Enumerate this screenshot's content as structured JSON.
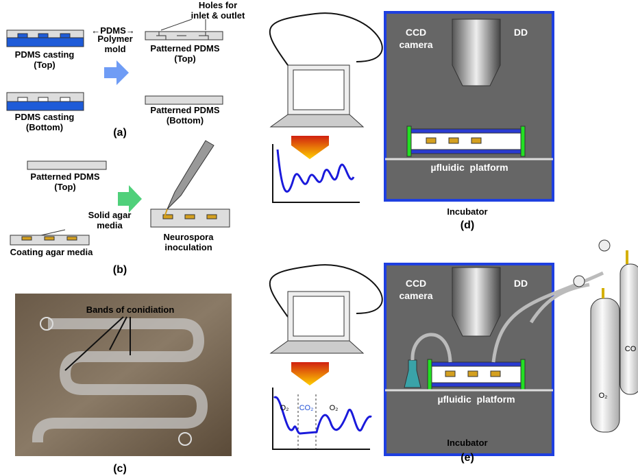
{
  "panel_a": {
    "label": "(a)",
    "pdms": "←PDMS→",
    "polymer_mold": [
      "Polymer",
      "mold"
    ],
    "casting_top": [
      "PDMS casting",
      "(Top)"
    ],
    "casting_bottom": [
      "PDMS casting",
      "(Bottom)"
    ],
    "holes": [
      "Holes for",
      "inlet & outlet"
    ],
    "patterned_top": [
      "Patterned PDMS",
      "(Top)"
    ],
    "patterned_bottom": [
      "Patterned PDMS",
      "(Bottom)"
    ]
  },
  "panel_b": {
    "label": "(b)",
    "patterned_top": [
      "Patterned PDMS",
      "(Top)"
    ],
    "solid_agar": [
      "Solid agar",
      "media"
    ],
    "coating": "Coating agar media",
    "inoculation": [
      "Neurospora",
      "inoculation"
    ]
  },
  "panel_c": {
    "label": "(c)",
    "bands": "Bands of conidiation"
  },
  "panel_d": {
    "label": "(d)",
    "camera": [
      "CCD",
      "camera"
    ],
    "dd": "DD",
    "platform": "µfluidic  platform",
    "incubator": "Incubator"
  },
  "panel_e": {
    "label": "(e)",
    "camera": [
      "CCD",
      "camera"
    ],
    "dd": "DD",
    "platform": "µfluidic  platform",
    "incubator": "Incubator",
    "graph_labels": [
      "O₂",
      "CO₂",
      "O₂"
    ],
    "cylinders": [
      "O₂",
      "CO"
    ]
  }
}
